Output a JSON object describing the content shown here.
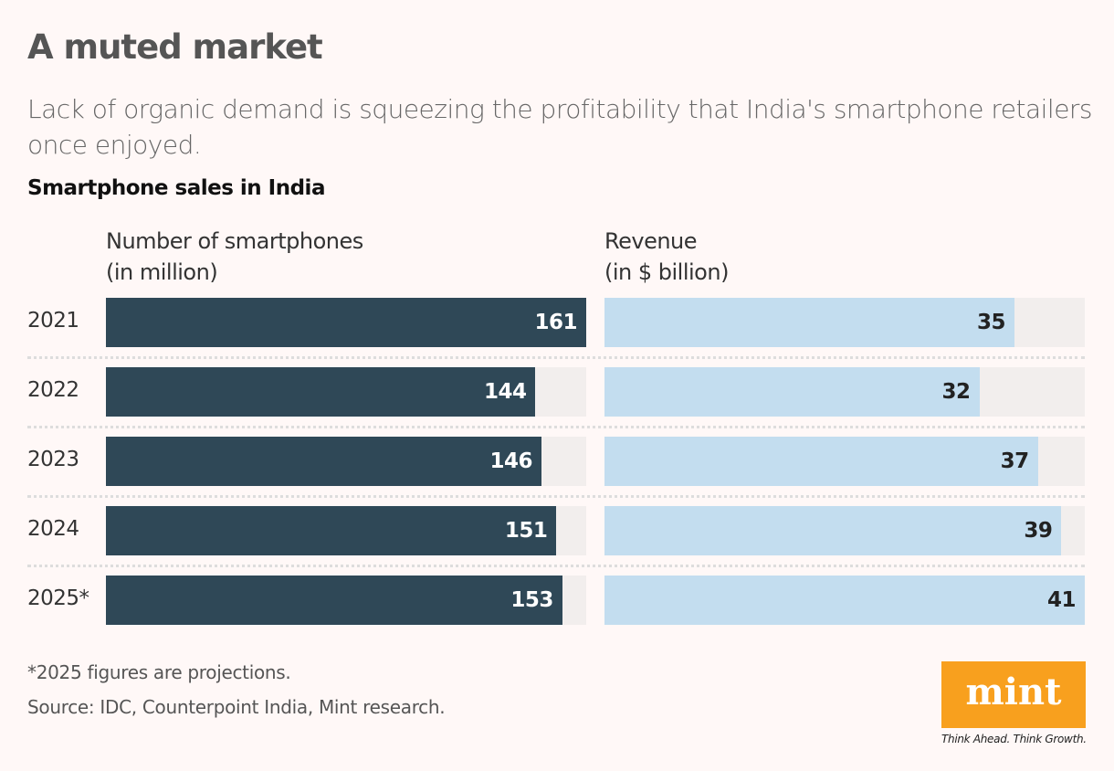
{
  "title": "A muted market",
  "subtitle": "Lack of organic demand is squeezing the profitability that India's smartphone retailers once enjoyed.",
  "chart_data": {
    "type": "bar",
    "orientation": "horizontal",
    "title": "Smartphone sales in India",
    "categories": [
      "2021",
      "2022",
      "2023",
      "2024",
      "2025*"
    ],
    "panels": [
      {
        "name": "Number of smartphones (in million)",
        "line1": "Number of smartphones",
        "line2": "(in million)",
        "values": [
          161,
          144,
          146,
          151,
          153
        ],
        "max": 161,
        "color": "#2f4857",
        "label_color": "#ffffff"
      },
      {
        "name": "Revenue (in $ billion)",
        "line1": "Revenue",
        "line2": "(in $ billion)",
        "values": [
          35,
          32,
          37,
          39,
          41
        ],
        "max": 41,
        "color": "#c3ddef",
        "label_color": "#222222"
      }
    ],
    "track_color": "#f2eeed",
    "grid": false
  },
  "footnote": "*2025 figures are projections.",
  "source": "Source: IDC, Counterpoint India, Mint research.",
  "logo": {
    "text": "mint",
    "tagline": "Think Ahead. Think Growth.",
    "color": "#f8a01e"
  }
}
